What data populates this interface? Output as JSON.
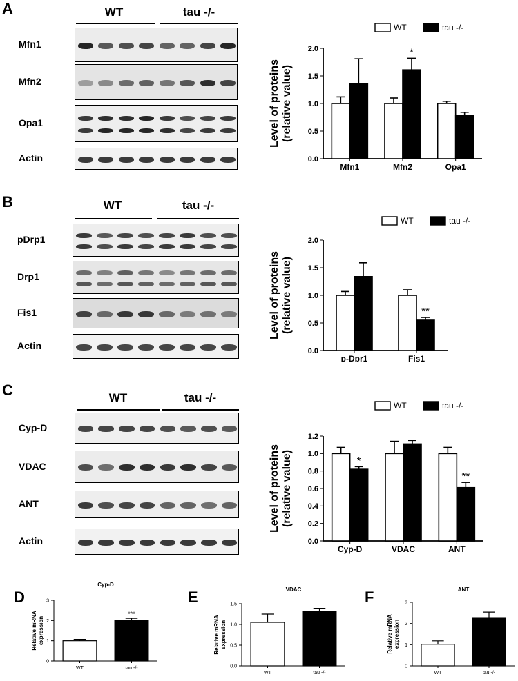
{
  "panels": {
    "A": {
      "letter": "A",
      "groups": {
        "wt": "WT",
        "tau": "tau -/-"
      },
      "blots": [
        {
          "label": "Mfn1",
          "shade": "#ececec",
          "rows": [
            [
              0.95,
              0.7,
              0.75,
              0.8,
              0.65,
              0.65,
              0.8,
              0.95
            ]
          ]
        },
        {
          "label": "Mfn2",
          "shade": "#e4e4e4",
          "rows": [
            [
              0.35,
              0.45,
              0.6,
              0.65,
              0.55,
              0.7,
              0.9,
              0.8
            ]
          ]
        },
        {
          "label": "Opa1",
          "shade": "#eeeeee",
          "rows": [
            [
              0.85,
              0.9,
              0.9,
              0.95,
              0.85,
              0.75,
              0.8,
              0.85
            ],
            [
              0.85,
              0.95,
              0.95,
              0.95,
              0.9,
              0.8,
              0.85,
              0.85
            ]
          ]
        },
        {
          "label": "Actin",
          "shade": "#f2f2f2",
          "rows": [
            [
              0.85,
              0.85,
              0.85,
              0.85,
              0.85,
              0.85,
              0.85,
              0.85
            ]
          ]
        }
      ]
    },
    "B": {
      "letter": "B",
      "groups": {
        "wt": "WT",
        "tau": "tau -/-"
      },
      "blots": [
        {
          "label": "pDrp1",
          "shade": "#eeeeee",
          "rows": [
            [
              0.85,
              0.7,
              0.8,
              0.75,
              0.8,
              0.85,
              0.75,
              0.75
            ],
            [
              0.85,
              0.75,
              0.85,
              0.8,
              0.85,
              0.85,
              0.8,
              0.8
            ]
          ]
        },
        {
          "label": "Drp1",
          "shade": "#e6e6e6",
          "rows": [
            [
              0.6,
              0.5,
              0.65,
              0.55,
              0.45,
              0.55,
              0.6,
              0.6
            ],
            [
              0.7,
              0.6,
              0.7,
              0.65,
              0.6,
              0.65,
              0.7,
              0.7
            ]
          ]
        },
        {
          "label": "Fis1",
          "shade": "#dcdcdc",
          "rows": [
            [
              0.8,
              0.6,
              0.85,
              0.85,
              0.6,
              0.5,
              0.55,
              0.5
            ]
          ]
        },
        {
          "label": "Actin",
          "shade": "#f2f2f2",
          "rows": [
            [
              0.8,
              0.8,
              0.8,
              0.8,
              0.8,
              0.8,
              0.8,
              0.8
            ]
          ]
        }
      ]
    },
    "C": {
      "letter": "C",
      "groups": {
        "wt": "WT",
        "tau": "tau -/-"
      },
      "blots": [
        {
          "label": "Cyp-D",
          "shade": "#f0f0f0",
          "rows": [
            [
              0.8,
              0.8,
              0.8,
              0.8,
              0.75,
              0.7,
              0.75,
              0.7
            ]
          ]
        },
        {
          "label": "VDAC",
          "shade": "#ececec",
          "rows": [
            [
              0.75,
              0.6,
              0.9,
              0.9,
              0.85,
              0.9,
              0.8,
              0.7
            ]
          ]
        },
        {
          "label": "ANT",
          "shade": "#eeeeee",
          "rows": [
            [
              0.85,
              0.75,
              0.8,
              0.8,
              0.65,
              0.65,
              0.6,
              0.65
            ]
          ]
        },
        {
          "label": "Actin",
          "shade": "#f2f2f2",
          "rows": [
            [
              0.85,
              0.85,
              0.85,
              0.85,
              0.85,
              0.85,
              0.85,
              0.85
            ]
          ]
        }
      ]
    },
    "D": {
      "letter": "D"
    },
    "E": {
      "letter": "E"
    },
    "F": {
      "letter": "F"
    }
  },
  "colors": {
    "wt_fill": "#ffffff",
    "tau_fill": "#000000",
    "stroke": "#000000"
  },
  "chart_data": [
    {
      "id": "A",
      "type": "bar",
      "ylabel": "Level of proteins\n(relative value)",
      "ylabel_lines": [
        "Level of proteins",
        "(relative value)"
      ],
      "categories": [
        "Mfn1",
        "Mfn2",
        "Opa1"
      ],
      "series": [
        {
          "name": "WT",
          "values": [
            1.0,
            1.0,
            1.0
          ],
          "errors": [
            0.12,
            0.1,
            0.04
          ]
        },
        {
          "name": "tau -/-",
          "values": [
            1.36,
            1.61,
            0.78
          ],
          "errors": [
            0.45,
            0.21,
            0.06
          ]
        }
      ],
      "annotations": [
        "",
        "*",
        ""
      ],
      "ylim": [
        0,
        2.0
      ],
      "yticks": [
        "0.0",
        "0.5",
        "1.0",
        "1.5",
        "2.0"
      ],
      "legend": "top"
    },
    {
      "id": "B",
      "type": "bar",
      "ylabel": "Level of proteins\n(relative value)",
      "ylabel_lines": [
        "Level of proteins",
        "(relative value)"
      ],
      "categories": [
        "p-Dpr1",
        "Fis1"
      ],
      "series": [
        {
          "name": "WT",
          "values": [
            1.0,
            1.0
          ],
          "errors": [
            0.07,
            0.1
          ]
        },
        {
          "name": "tau -/-",
          "values": [
            1.34,
            0.55
          ],
          "errors": [
            0.25,
            0.05
          ]
        }
      ],
      "annotations": [
        "",
        "**"
      ],
      "ylim": [
        0,
        2.0
      ],
      "yticks": [
        "0.0",
        "0.5",
        "1.0",
        "1.5",
        "2.0"
      ],
      "legend": "top"
    },
    {
      "id": "C",
      "type": "bar",
      "ylabel": "Level of proteins\n(relative value)",
      "ylabel_lines": [
        "Level of proteins",
        "(relative value)"
      ],
      "categories": [
        "Cyp-D",
        "VDAC",
        "ANT"
      ],
      "series": [
        {
          "name": "WT",
          "values": [
            1.0,
            1.0,
            1.0
          ],
          "errors": [
            0.07,
            0.14,
            0.07
          ]
        },
        {
          "name": "tau -/-",
          "values": [
            0.82,
            1.11,
            0.61
          ],
          "errors": [
            0.03,
            0.04,
            0.06
          ]
        }
      ],
      "annotations": [
        "*",
        "",
        "**"
      ],
      "ylim": [
        0,
        1.2
      ],
      "yticks": [
        "0.0",
        "0.2",
        "0.4",
        "0.6",
        "0.8",
        "1.0",
        "1.2"
      ],
      "legend": "top"
    },
    {
      "id": "D",
      "type": "bar",
      "title": "Cyp-D",
      "ylabel_lines": [
        "Relative mRNA",
        "expression"
      ],
      "categories": [
        "WT",
        "tau -/-"
      ],
      "values": [
        1.0,
        2.02
      ],
      "errors": [
        0.07,
        0.09
      ],
      "annotations": [
        "",
        "***"
      ],
      "ylim": [
        0,
        3
      ],
      "yticks": [
        "0",
        "1",
        "2",
        "3"
      ]
    },
    {
      "id": "E",
      "type": "bar",
      "title": "VDAC",
      "ylabel_lines": [
        "Relative mRNA",
        "expression"
      ],
      "categories": [
        "WT",
        "tau -/-"
      ],
      "values": [
        1.05,
        1.32
      ],
      "errors": [
        0.2,
        0.07
      ],
      "annotations": [
        "",
        ""
      ],
      "ylim": [
        0,
        1.5
      ],
      "yticks": [
        "0.0",
        "0.5",
        "1.0",
        "1.5"
      ]
    },
    {
      "id": "F",
      "type": "bar",
      "title": "ANT",
      "ylabel_lines": [
        "Relative mRNA",
        "expression"
      ],
      "categories": [
        "WT",
        "tau -/-"
      ],
      "values": [
        1.02,
        2.28
      ],
      "errors": [
        0.16,
        0.26
      ],
      "annotations": [
        "",
        ""
      ],
      "ylim": [
        0,
        3
      ],
      "yticks": [
        "0",
        "1",
        "2",
        "3"
      ]
    }
  ]
}
